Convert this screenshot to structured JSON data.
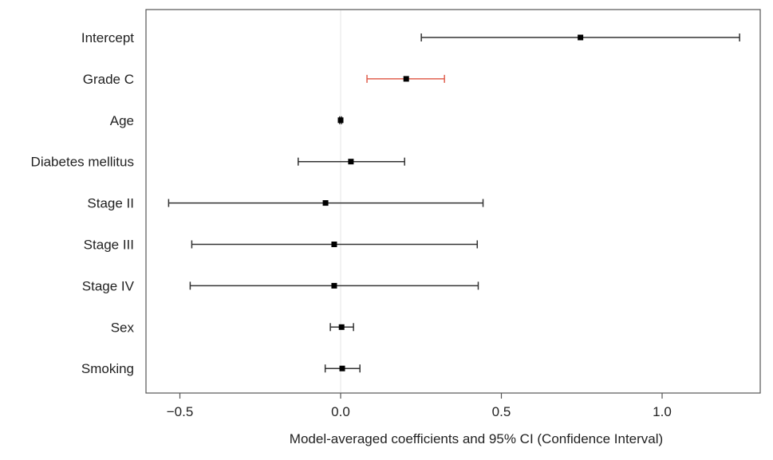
{
  "chart_data": {
    "type": "forest",
    "title": "",
    "xlabel": "Model-averaged coefficients and 95% CI (Confidence Interval)",
    "ylabel": "",
    "xlim": [
      -0.6,
      1.3
    ],
    "xticks": [
      -0.5,
      0.0,
      0.5,
      1.0
    ],
    "xtick_labels": [
      "−0.5",
      "0.0",
      "0.5",
      "1.0"
    ],
    "reference_line": 0,
    "grid": false,
    "rows": [
      {
        "label": "Intercept",
        "estimate": 0.746,
        "lower": 0.251,
        "upper": 1.241,
        "color": "#333333"
      },
      {
        "label": "Grade C",
        "estimate": 0.204,
        "lower": 0.082,
        "upper": 0.323,
        "color": "#e0604f"
      },
      {
        "label": "Age",
        "estimate": 0.0,
        "lower": -0.003,
        "upper": 0.003,
        "color": "#333333"
      },
      {
        "label": "Diabetes mellitus",
        "estimate": 0.032,
        "lower": -0.132,
        "upper": 0.199,
        "color": "#333333"
      },
      {
        "label": "Stage II",
        "estimate": -0.047,
        "lower": -0.535,
        "upper": 0.443,
        "color": "#333333"
      },
      {
        "label": "Stage III",
        "estimate": -0.02,
        "lower": -0.463,
        "upper": 0.425,
        "color": "#333333"
      },
      {
        "label": "Stage IV",
        "estimate": -0.02,
        "lower": -0.468,
        "upper": 0.428,
        "color": "#333333"
      },
      {
        "label": "Sex",
        "estimate": 0.003,
        "lower": -0.032,
        "upper": 0.04,
        "color": "#333333"
      },
      {
        "label": "Smoking",
        "estimate": 0.005,
        "lower": -0.048,
        "upper": 0.06,
        "color": "#333333"
      }
    ]
  }
}
